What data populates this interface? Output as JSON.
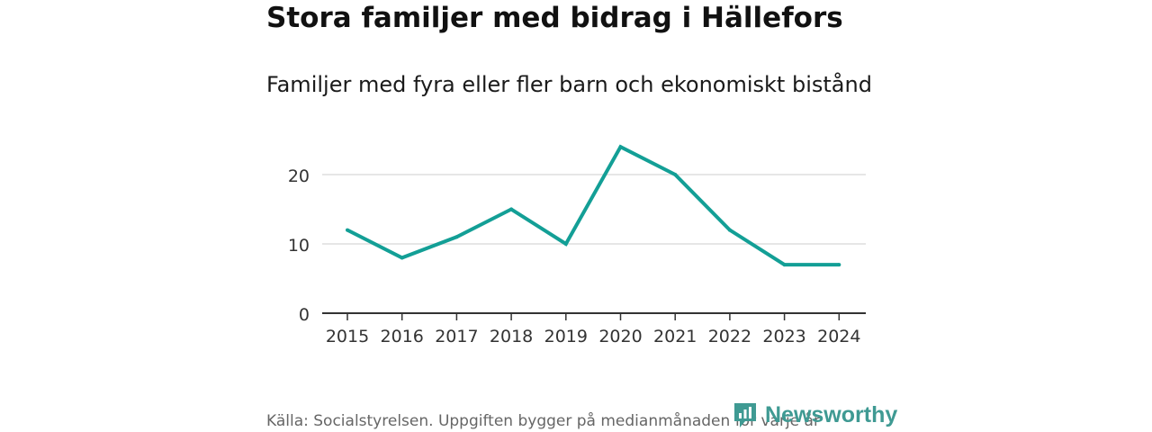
{
  "chart_data": {
    "type": "line",
    "title": "Stora familjer med bidrag i Hällefors",
    "subtitle": "Familjer med fyra eller fler barn och ekonomiskt bistånd",
    "x": [
      "2015",
      "2016",
      "2017",
      "2018",
      "2019",
      "2020",
      "2021",
      "2022",
      "2023",
      "2024"
    ],
    "series": [
      {
        "values": [
          12,
          8,
          11,
          15,
          10,
          24,
          20,
          12,
          7,
          7
        ],
        "color": "#139f96"
      }
    ],
    "yticks": [
      0,
      10,
      20
    ],
    "ylim": [
      0,
      26
    ],
    "grid": true,
    "xlabel": "",
    "ylabel": ""
  },
  "footer": {
    "source": "Källa: Socialstyrelsen. Uppgiften bygger på medianmånaden för varje år",
    "brand": "Newsworthy"
  },
  "colors": {
    "line": "#139f96",
    "grid": "#dddddd",
    "axis": "#333333",
    "brand": "#3f9a93"
  }
}
